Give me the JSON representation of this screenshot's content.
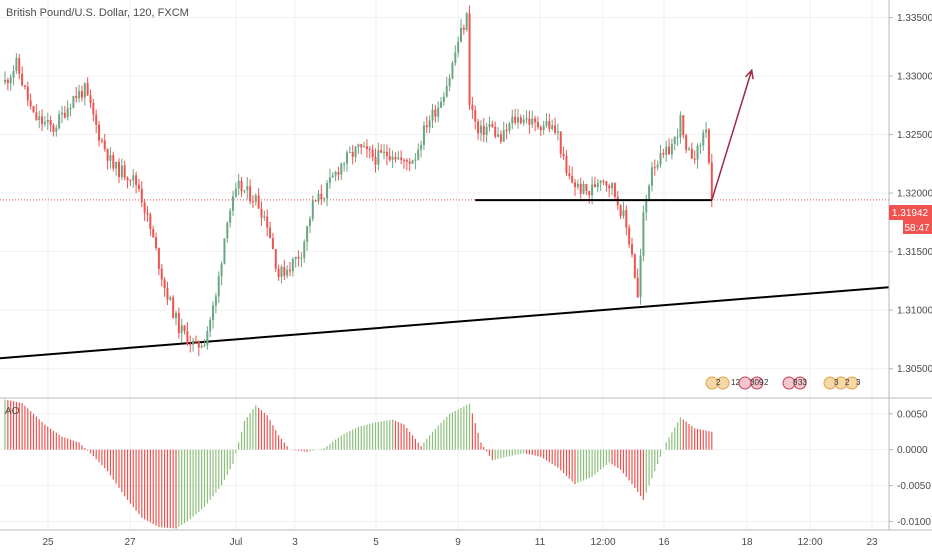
{
  "title": "British Pound/U.S. Dollar, 120, FXCM",
  "price_badge": {
    "price": "1.31942",
    "countdown": "58:47"
  },
  "indicator_label": "AO",
  "event_markers": [
    {
      "flags": "us",
      "counts": [
        "2",
        "12"
      ]
    },
    {
      "flags": "gb",
      "counts": [
        "309",
        "2"
      ]
    },
    {
      "flags": "gb",
      "counts": [
        "8",
        "33"
      ]
    },
    {
      "flags": "us",
      "counts": [
        "3",
        "2",
        "3"
      ]
    }
  ],
  "colors": {
    "up": "#6ca583",
    "down": "#ef5350",
    "trendline": "#000000",
    "arrow": "#9c2b45",
    "price_line": "#ef5350",
    "badge": "#ef5350",
    "ao_up": "#8bc07a",
    "ao_down": "#ef5350"
  },
  "chart_data": [
    {
      "type": "candlestick",
      "title": "British Pound/U.S. Dollar, 120, FXCM",
      "x_ticks": [
        "25",
        "27",
        "Jul",
        "3",
        "5",
        "9",
        "11",
        "12:00",
        "16",
        "18",
        "12:00",
        "23"
      ],
      "y_ticks": [
        1.305,
        1.31,
        1.315,
        1.32,
        1.325,
        1.33,
        1.335
      ],
      "y_tick_labels": [
        "1.30500",
        "1.31000",
        "1.31500",
        "1.32000",
        "1.32500",
        "1.33000",
        "1.33500"
      ],
      "ylim": [
        1.3025,
        1.3365
      ],
      "current_price": 1.31942,
      "path_knots": [
        [
          0,
          1.3295
        ],
        [
          4,
          1.331
        ],
        [
          10,
          1.3265
        ],
        [
          17,
          1.3255
        ],
        [
          24,
          1.3282
        ],
        [
          28,
          1.3288
        ],
        [
          33,
          1.325
        ],
        [
          38,
          1.3222
        ],
        [
          44,
          1.3215
        ],
        [
          47,
          1.3205
        ],
        [
          52,
          1.316
        ],
        [
          56,
          1.312
        ],
        [
          61,
          1.3085
        ],
        [
          67,
          1.3068
        ],
        [
          70,
          1.3075
        ],
        [
          74,
          1.311
        ],
        [
          78,
          1.318
        ],
        [
          82,
          1.3205
        ],
        [
          88,
          1.3195
        ],
        [
          92,
          1.3175
        ],
        [
          96,
          1.313
        ],
        [
          100,
          1.3138
        ],
        [
          104,
          1.315
        ],
        [
          108,
          1.319
        ],
        [
          112,
          1.32
        ],
        [
          118,
          1.3225
        ],
        [
          124,
          1.3238
        ],
        [
          130,
          1.323
        ],
        [
          136,
          1.3235
        ],
        [
          140,
          1.3225
        ],
        [
          144,
          1.3232
        ],
        [
          148,
          1.326
        ],
        [
          152,
          1.3275
        ],
        [
          156,
          1.33
        ],
        [
          159,
          1.333
        ],
        [
          162,
          1.335
        ],
        [
          163,
          1.328
        ],
        [
          166,
          1.325
        ],
        [
          170,
          1.3258
        ],
        [
          174,
          1.3245
        ],
        [
          178,
          1.3262
        ],
        [
          182,
          1.3265
        ],
        [
          186,
          1.3258
        ],
        [
          190,
          1.326
        ],
        [
          194,
          1.325
        ],
        [
          197,
          1.3215
        ],
        [
          201,
          1.3205
        ],
        [
          205,
          1.32
        ],
        [
          209,
          1.3215
        ],
        [
          213,
          1.3205
        ],
        [
          217,
          1.318
        ],
        [
          220,
          1.315
        ],
        [
          222,
          1.311
        ],
        [
          224,
          1.318
        ],
        [
          227,
          1.3225
        ],
        [
          231,
          1.323
        ],
        [
          235,
          1.3245
        ],
        [
          237,
          1.3262
        ],
        [
          239,
          1.3232
        ],
        [
          243,
          1.3235
        ],
        [
          246,
          1.3258
        ],
        [
          248,
          1.3194
        ]
      ],
      "trendline": {
        "from": {
          "bar": 0,
          "price": 1.3059
        },
        "to": {
          "bar": 312,
          "price": 1.312
        }
      },
      "support_line": {
        "from": {
          "bar": 165,
          "price": 1.3194
        },
        "to": {
          "bar": 248,
          "price": 1.3194
        }
      },
      "projection_arrow": {
        "from": {
          "bar": 248,
          "price": 1.3194
        },
        "to": {
          "bar": 262,
          "price": 1.3305
        }
      }
    },
    {
      "type": "bar",
      "title": "AO",
      "y_ticks": [
        -0.01,
        -0.005,
        0.0,
        0.005
      ],
      "y_tick_labels": [
        "-0.0100",
        "-0.0050",
        "0.0000",
        "0.0050"
      ],
      "ylim": [
        -0.0112,
        0.0072
      ],
      "envelope_knots": [
        [
          0,
          0.007
        ],
        [
          6,
          0.0065
        ],
        [
          14,
          0.0035
        ],
        [
          20,
          0.0018
        ],
        [
          26,
          0.001
        ],
        [
          30,
          -0.0005
        ],
        [
          36,
          -0.003
        ],
        [
          42,
          -0.0065
        ],
        [
          48,
          -0.0095
        ],
        [
          54,
          -0.0108
        ],
        [
          60,
          -0.011
        ],
        [
          64,
          -0.01
        ],
        [
          70,
          -0.008
        ],
        [
          76,
          -0.005
        ],
        [
          80,
          -0.002
        ],
        [
          84,
          0.004
        ],
        [
          88,
          0.0062
        ],
        [
          92,
          0.0048
        ],
        [
          96,
          0.002
        ],
        [
          100,
          0.0
        ],
        [
          106,
          -0.0003
        ],
        [
          112,
          0.0002
        ],
        [
          118,
          0.002
        ],
        [
          124,
          0.0032
        ],
        [
          130,
          0.0038
        ],
        [
          136,
          0.0042
        ],
        [
          140,
          0.0035
        ],
        [
          146,
          0.0005
        ],
        [
          150,
          0.0025
        ],
        [
          156,
          0.005
        ],
        [
          163,
          0.0064
        ],
        [
          167,
          0.001
        ],
        [
          171,
          -0.0015
        ],
        [
          176,
          -0.001
        ],
        [
          182,
          -0.0005
        ],
        [
          188,
          -0.001
        ],
        [
          194,
          -0.0025
        ],
        [
          200,
          -0.0048
        ],
        [
          206,
          -0.0038
        ],
        [
          212,
          -0.0018
        ],
        [
          216,
          -0.0028
        ],
        [
          220,
          -0.0048
        ],
        [
          224,
          -0.007
        ],
        [
          227,
          -0.004
        ],
        [
          232,
          0.001
        ],
        [
          237,
          0.0045
        ],
        [
          242,
          0.003
        ],
        [
          248,
          0.0025
        ]
      ]
    }
  ]
}
